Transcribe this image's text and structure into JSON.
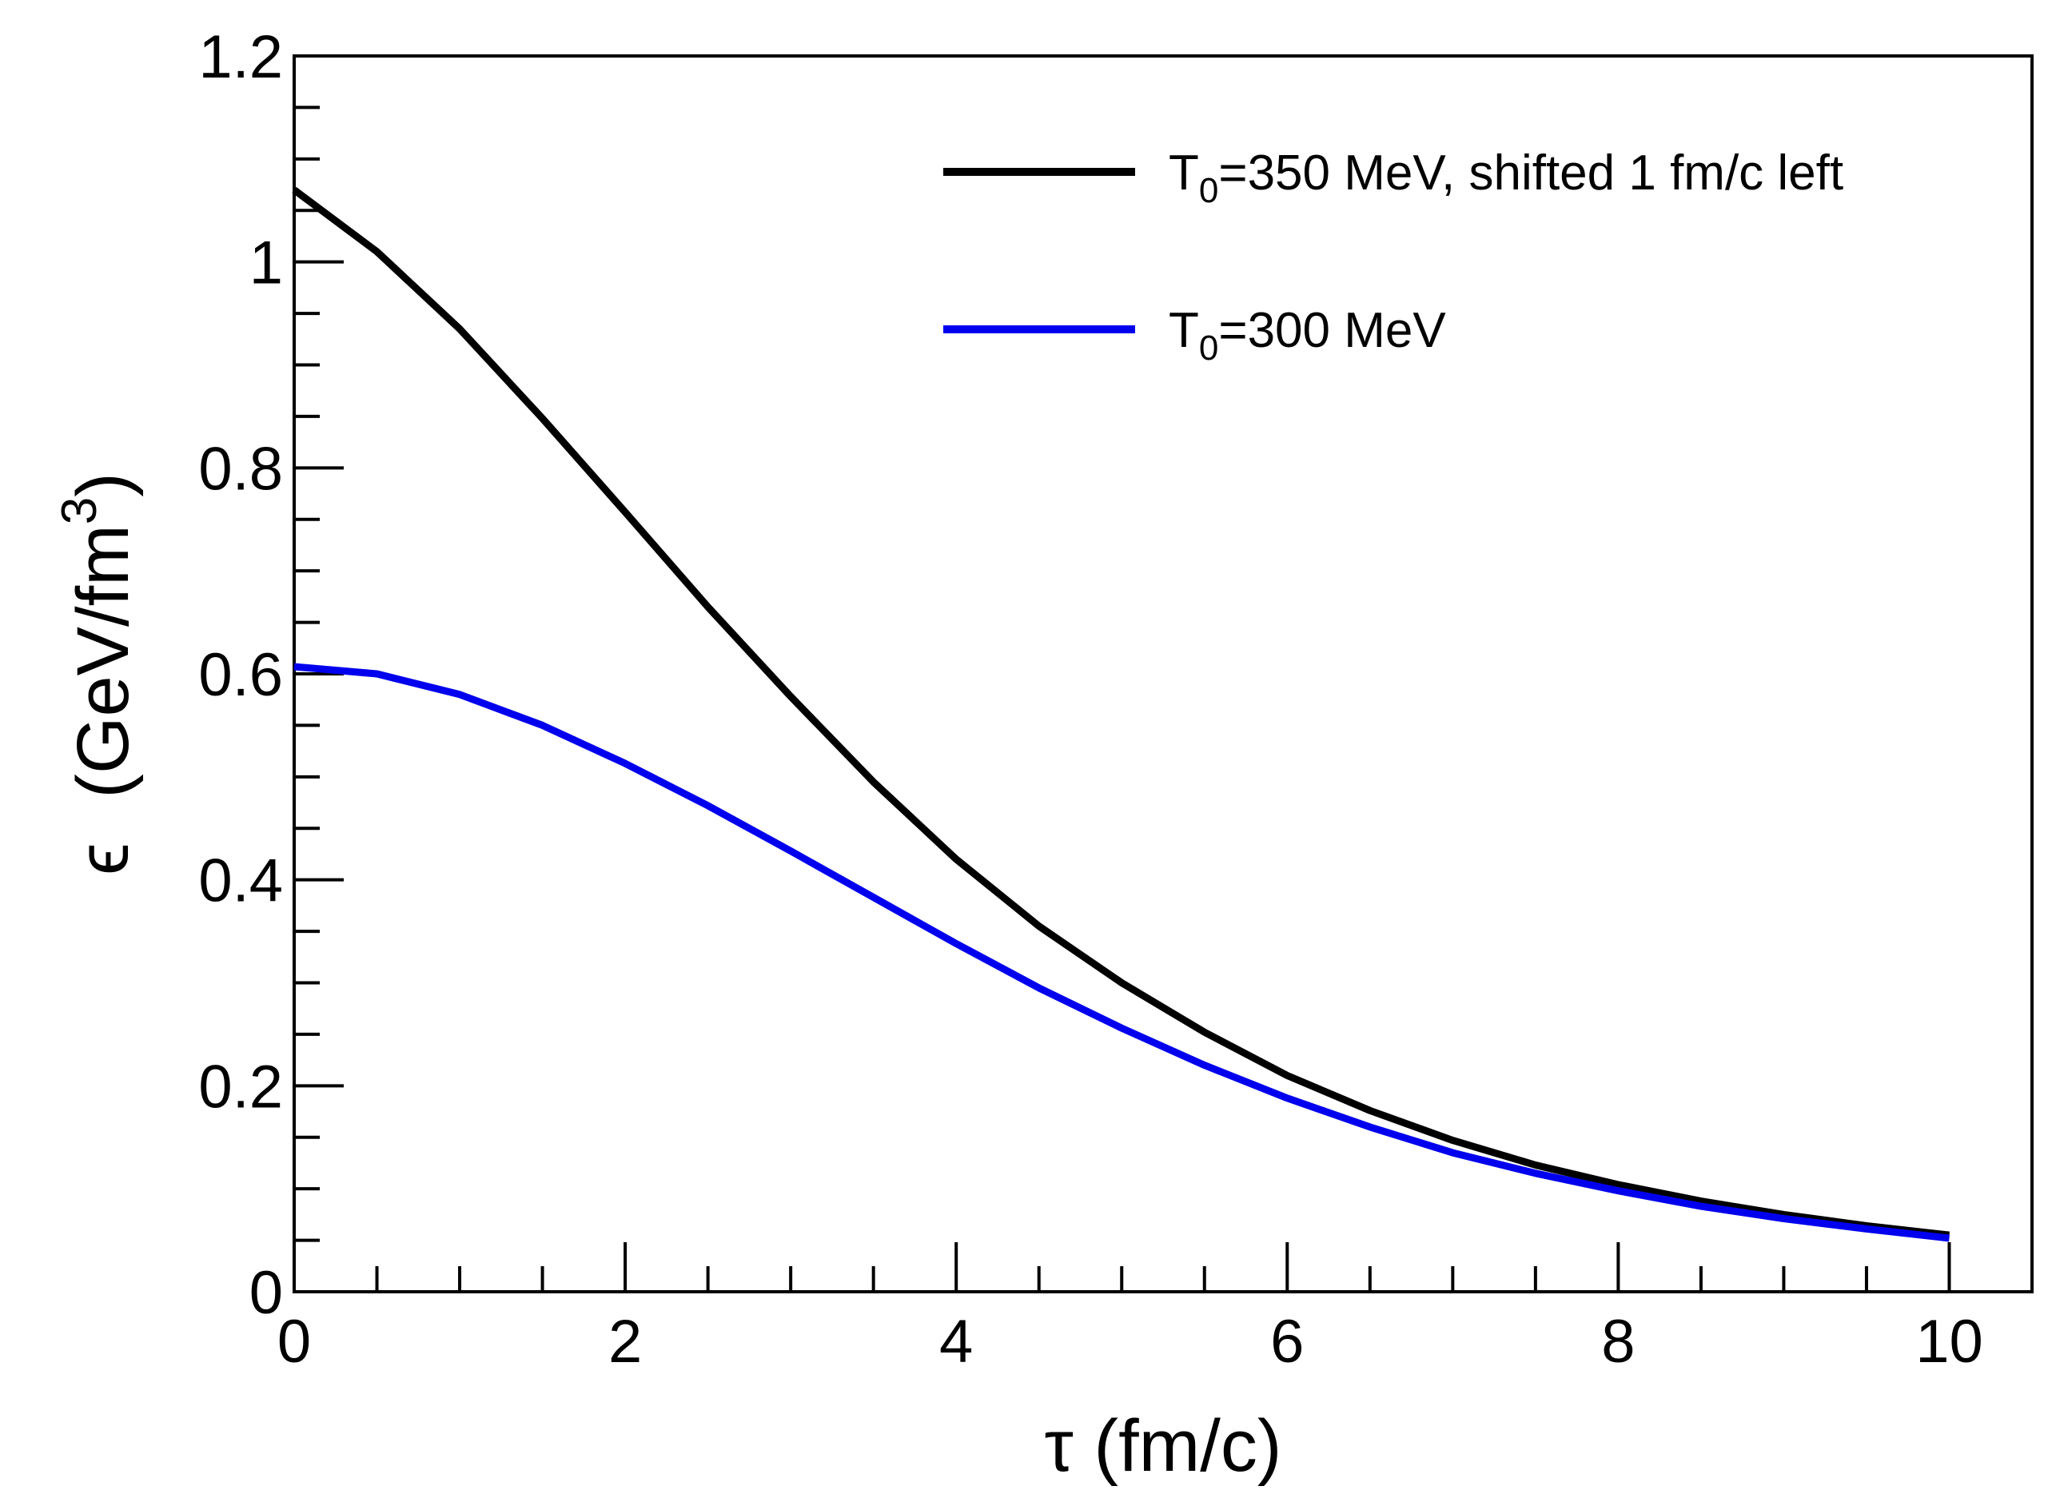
{
  "chart_data": {
    "type": "line",
    "title": "",
    "xlabel": "τ (fm/c)",
    "ylabel_symbol": "ϵ",
    "ylabel_units": "(GeV/fm",
    "ylabel_exponent": "3",
    "ylabel_close": ")",
    "xlim": [
      0,
      10.5
    ],
    "ylim": [
      0,
      1.2
    ],
    "x_ticks": [
      0,
      2,
      4,
      6,
      8,
      10
    ],
    "y_ticks": [
      0,
      0.2,
      0.4,
      0.6,
      0.8,
      1,
      1.2
    ],
    "x_tick_labels": [
      "0",
      "2",
      "4",
      "6",
      "8",
      "10"
    ],
    "y_tick_labels": [
      "0",
      "0.2",
      "0.4",
      "0.6",
      "0.8",
      "1",
      "1.2"
    ],
    "x_minor_step": 0.5,
    "y_minor_step": 0.05,
    "grid": false,
    "legend_position": "top-right",
    "series": [
      {
        "name": "T0=350 MeV, shifted 1 fm/c left",
        "label_prefix": "T",
        "label_sub": "0",
        "label_rest": "=350 MeV, shifted 1 fm/c left",
        "color": "#000000",
        "x": [
          0,
          0.5,
          1,
          1.5,
          2,
          2.5,
          3,
          3.5,
          4,
          4.5,
          5,
          5.5,
          6,
          6.5,
          7,
          7.5,
          8,
          8.5,
          9,
          9.5,
          10
        ],
        "y": [
          1.07,
          1.01,
          0.935,
          0.848,
          0.757,
          0.665,
          0.578,
          0.495,
          0.42,
          0.355,
          0.3,
          0.252,
          0.21,
          0.176,
          0.147,
          0.123,
          0.104,
          0.088,
          0.075,
          0.064,
          0.055
        ]
      },
      {
        "name": "T0=300 MeV",
        "label_prefix": "T",
        "label_sub": "0",
        "label_rest": "=300 MeV",
        "color": "#0000ee",
        "x": [
          0,
          0.5,
          1,
          1.5,
          2,
          2.5,
          3,
          3.5,
          4,
          4.5,
          5,
          5.5,
          6,
          6.5,
          7,
          7.5,
          8,
          8.5,
          9,
          9.5,
          10
        ],
        "y": [
          0.607,
          0.6,
          0.58,
          0.55,
          0.513,
          0.472,
          0.428,
          0.383,
          0.338,
          0.295,
          0.256,
          0.22,
          0.188,
          0.16,
          0.135,
          0.115,
          0.098,
          0.083,
          0.071,
          0.061,
          0.052
        ]
      }
    ]
  }
}
